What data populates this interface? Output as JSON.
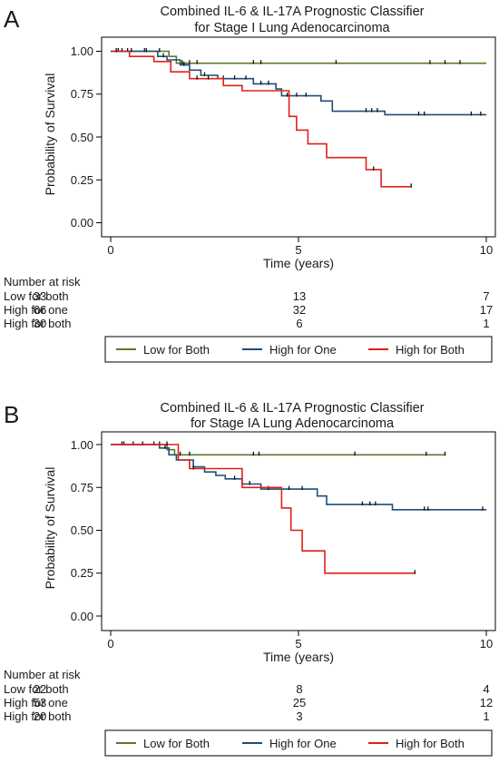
{
  "chart_data": [
    {
      "type": "line",
      "panel_label": "A",
      "title": "Combined IL-6 & IL-17A Prognostic Classifier",
      "subtitle": "for Stage I Lung Adenocarcinoma",
      "xlabel": "Time (years)",
      "ylabel": "Probability of Survival",
      "xlim": [
        0,
        10
      ],
      "ylim": [
        0,
        1
      ],
      "xticks": [
        "0",
        "5",
        "10"
      ],
      "yticks": [
        "0.00",
        "0.25",
        "0.50",
        "0.75",
        "1.00"
      ],
      "risk_title": "Number at risk",
      "series": [
        {
          "name": "Low for Both",
          "color": "#5a7a2a",
          "steps": [
            [
              0,
              1.0
            ],
            [
              1.55,
              1.0
            ],
            [
              1.55,
              0.97
            ],
            [
              1.75,
              0.97
            ],
            [
              1.75,
              0.93
            ],
            [
              10,
              0.93
            ]
          ],
          "censors": [
            [
              0.2,
              1.0
            ],
            [
              0.45,
              1.0
            ],
            [
              0.9,
              1.0
            ],
            [
              1.3,
              1.0
            ],
            [
              1.9,
              0.93
            ],
            [
              2.1,
              0.93
            ],
            [
              2.3,
              0.93
            ],
            [
              3.8,
              0.93
            ],
            [
              4.0,
              0.93
            ],
            [
              6.0,
              0.93
            ],
            [
              8.5,
              0.93
            ],
            [
              8.9,
              0.93
            ],
            [
              9.3,
              0.93
            ]
          ]
        },
        {
          "name": "High for One",
          "color": "#1f4e79",
          "steps": [
            [
              0,
              1.0
            ],
            [
              1.25,
              1.0
            ],
            [
              1.25,
              0.97
            ],
            [
              1.5,
              0.97
            ],
            [
              1.5,
              0.95
            ],
            [
              1.85,
              0.95
            ],
            [
              1.85,
              0.92
            ],
            [
              2.1,
              0.92
            ],
            [
              2.1,
              0.89
            ],
            [
              2.4,
              0.89
            ],
            [
              2.4,
              0.86
            ],
            [
              2.85,
              0.86
            ],
            [
              2.85,
              0.84
            ],
            [
              3.8,
              0.84
            ],
            [
              3.8,
              0.81
            ],
            [
              4.4,
              0.81
            ],
            [
              4.4,
              0.78
            ],
            [
              4.55,
              0.78
            ],
            [
              4.55,
              0.74
            ],
            [
              5.6,
              0.74
            ],
            [
              5.6,
              0.71
            ],
            [
              5.9,
              0.71
            ],
            [
              5.9,
              0.65
            ],
            [
              7.3,
              0.65
            ],
            [
              7.3,
              0.63
            ],
            [
              10,
              0.63
            ]
          ],
          "censors": [
            [
              0.3,
              1.0
            ],
            [
              0.55,
              1.0
            ],
            [
              0.95,
              1.0
            ],
            [
              1.4,
              0.97
            ],
            [
              1.95,
              0.92
            ],
            [
              2.5,
              0.86
            ],
            [
              3.0,
              0.84
            ],
            [
              3.3,
              0.84
            ],
            [
              3.6,
              0.84
            ],
            [
              4.0,
              0.81
            ],
            [
              4.2,
              0.81
            ],
            [
              4.7,
              0.74
            ],
            [
              4.95,
              0.74
            ],
            [
              5.2,
              0.74
            ],
            [
              6.8,
              0.65
            ],
            [
              6.95,
              0.65
            ],
            [
              7.1,
              0.65
            ],
            [
              8.2,
              0.63
            ],
            [
              8.35,
              0.63
            ],
            [
              9.6,
              0.63
            ],
            [
              9.85,
              0.63
            ]
          ]
        },
        {
          "name": "High for Both",
          "color": "#e0201b",
          "steps": [
            [
              0,
              1.0
            ],
            [
              0.5,
              1.0
            ],
            [
              0.5,
              0.97
            ],
            [
              1.15,
              0.97
            ],
            [
              1.15,
              0.94
            ],
            [
              1.6,
              0.94
            ],
            [
              1.6,
              0.88
            ],
            [
              2.1,
              0.88
            ],
            [
              2.1,
              0.84
            ],
            [
              3.0,
              0.84
            ],
            [
              3.0,
              0.8
            ],
            [
              3.5,
              0.8
            ],
            [
              3.5,
              0.77
            ],
            [
              4.75,
              0.77
            ],
            [
              4.75,
              0.62
            ],
            [
              4.95,
              0.62
            ],
            [
              4.95,
              0.54
            ],
            [
              5.25,
              0.54
            ],
            [
              5.25,
              0.46
            ],
            [
              5.75,
              0.46
            ],
            [
              5.75,
              0.38
            ],
            [
              6.8,
              0.38
            ],
            [
              6.8,
              0.31
            ],
            [
              7.2,
              0.31
            ],
            [
              7.2,
              0.21
            ],
            [
              8.0,
              0.21
            ]
          ],
          "censors": [
            [
              0.15,
              1.0
            ],
            [
              2.3,
              0.84
            ],
            [
              2.6,
              0.84
            ],
            [
              7.0,
              0.31
            ],
            [
              8.0,
              0.21
            ]
          ]
        }
      ],
      "risk_table": [
        {
          "label": "Low for both",
          "values": [
            "33",
            "13",
            "7"
          ]
        },
        {
          "label": "High for one",
          "values": [
            "66",
            "32",
            "17"
          ]
        },
        {
          "label": "High for both",
          "values": [
            "30",
            "6",
            "1"
          ]
        }
      ],
      "legend": [
        "Low for Both",
        "High for One",
        "High for Both"
      ]
    },
    {
      "type": "line",
      "panel_label": "B",
      "title": "Combined IL-6 & IL-17A Prognostic Classifier",
      "subtitle": "for Stage IA Lung Adenocarcinoma",
      "xlabel": "Time (years)",
      "ylabel": "Probability of Survival",
      "xlim": [
        0,
        10
      ],
      "ylim": [
        0,
        1
      ],
      "xticks": [
        "0",
        "5",
        "10"
      ],
      "yticks": [
        "0.00",
        "0.25",
        "0.50",
        "0.75",
        "1.00"
      ],
      "risk_title": "Number at risk",
      "series": [
        {
          "name": "Low for Both",
          "color": "#5a7a2a",
          "steps": [
            [
              0,
              1.0
            ],
            [
              1.5,
              1.0
            ],
            [
              1.5,
              0.97
            ],
            [
              1.7,
              0.97
            ],
            [
              1.7,
              0.94
            ],
            [
              8.9,
              0.94
            ]
          ],
          "censors": [
            [
              0.3,
              1.0
            ],
            [
              0.6,
              1.0
            ],
            [
              1.3,
              1.0
            ],
            [
              1.85,
              0.94
            ],
            [
              2.1,
              0.94
            ],
            [
              3.8,
              0.94
            ],
            [
              3.95,
              0.94
            ],
            [
              6.5,
              0.94
            ],
            [
              8.4,
              0.94
            ],
            [
              8.9,
              0.94
            ]
          ]
        },
        {
          "name": "High for One",
          "color": "#1f4e79",
          "steps": [
            [
              0,
              1.0
            ],
            [
              1.3,
              1.0
            ],
            [
              1.3,
              0.98
            ],
            [
              1.55,
              0.98
            ],
            [
              1.55,
              0.94
            ],
            [
              1.75,
              0.94
            ],
            [
              1.75,
              0.91
            ],
            [
              2.2,
              0.91
            ],
            [
              2.2,
              0.87
            ],
            [
              2.5,
              0.87
            ],
            [
              2.5,
              0.84
            ],
            [
              2.8,
              0.84
            ],
            [
              2.8,
              0.82
            ],
            [
              3.05,
              0.82
            ],
            [
              3.05,
              0.8
            ],
            [
              3.5,
              0.8
            ],
            [
              3.5,
              0.77
            ],
            [
              4.0,
              0.77
            ],
            [
              4.0,
              0.74
            ],
            [
              5.5,
              0.74
            ],
            [
              5.5,
              0.7
            ],
            [
              5.75,
              0.7
            ],
            [
              5.75,
              0.65
            ],
            [
              7.5,
              0.65
            ],
            [
              7.5,
              0.62
            ],
            [
              10,
              0.62
            ]
          ],
          "censors": [
            [
              0.35,
              1.0
            ],
            [
              0.85,
              1.0
            ],
            [
              1.15,
              1.0
            ],
            [
              1.45,
              0.98
            ],
            [
              3.3,
              0.8
            ],
            [
              3.7,
              0.77
            ],
            [
              4.2,
              0.74
            ],
            [
              4.75,
              0.74
            ],
            [
              5.1,
              0.74
            ],
            [
              6.7,
              0.65
            ],
            [
              6.9,
              0.65
            ],
            [
              7.05,
              0.65
            ],
            [
              8.35,
              0.62
            ],
            [
              8.45,
              0.62
            ],
            [
              9.9,
              0.62
            ]
          ]
        },
        {
          "name": "High for Both",
          "color": "#e0201b",
          "steps": [
            [
              0,
              1.0
            ],
            [
              1.8,
              1.0
            ],
            [
              1.8,
              0.91
            ],
            [
              2.1,
              0.91
            ],
            [
              2.1,
              0.86
            ],
            [
              3.5,
              0.86
            ],
            [
              3.5,
              0.75
            ],
            [
              4.55,
              0.75
            ],
            [
              4.55,
              0.63
            ],
            [
              4.8,
              0.63
            ],
            [
              4.8,
              0.5
            ],
            [
              5.1,
              0.5
            ],
            [
              5.1,
              0.38
            ],
            [
              5.7,
              0.38
            ],
            [
              5.7,
              0.25
            ],
            [
              8.1,
              0.25
            ]
          ],
          "censors": [
            [
              1.5,
              1.0
            ],
            [
              2.2,
              0.86
            ],
            [
              8.1,
              0.25
            ]
          ]
        }
      ],
      "risk_table": [
        {
          "label": "Low for both",
          "values": [
            "22",
            "8",
            "4"
          ]
        },
        {
          "label": "High for one",
          "values": [
            "53",
            "25",
            "12"
          ]
        },
        {
          "label": "High for both",
          "values": [
            "20",
            "3",
            "1"
          ]
        }
      ],
      "legend": [
        "Low for Both",
        "High for One",
        "High for Both"
      ]
    }
  ]
}
